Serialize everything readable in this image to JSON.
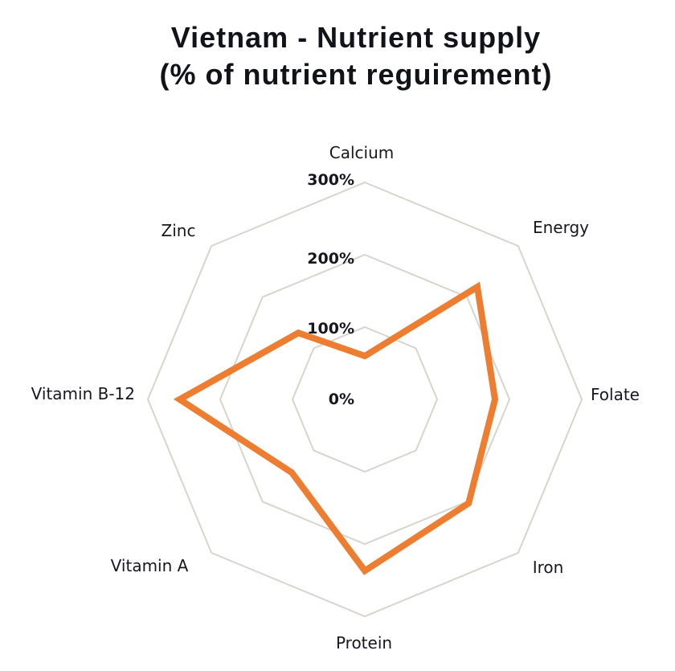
{
  "chart_data": {
    "type": "radar",
    "title": "Vietnam - Nutrient supply",
    "subtitle": "(% of nutrient reguirement)",
    "categories": [
      "Calcium",
      "Energy",
      "Folate",
      "Iron",
      "Protein",
      "Vitamin A",
      "Vitamin B-12",
      "Zinc"
    ],
    "values": [
      60,
      220,
      180,
      203,
      237,
      143,
      256,
      130
    ],
    "units": "% of requirement",
    "rings": [
      100,
      200,
      300
    ],
    "ring_labels": [
      "300%",
      "200%",
      "100%",
      "0%"
    ],
    "rlim": [
      0,
      300
    ],
    "grid": "octagon-rings-on",
    "legend": "none",
    "series_name": "Vietnam",
    "series_color": "#ED7D31",
    "grid_color": "#D8D4CE",
    "text_color": "#17171F"
  }
}
